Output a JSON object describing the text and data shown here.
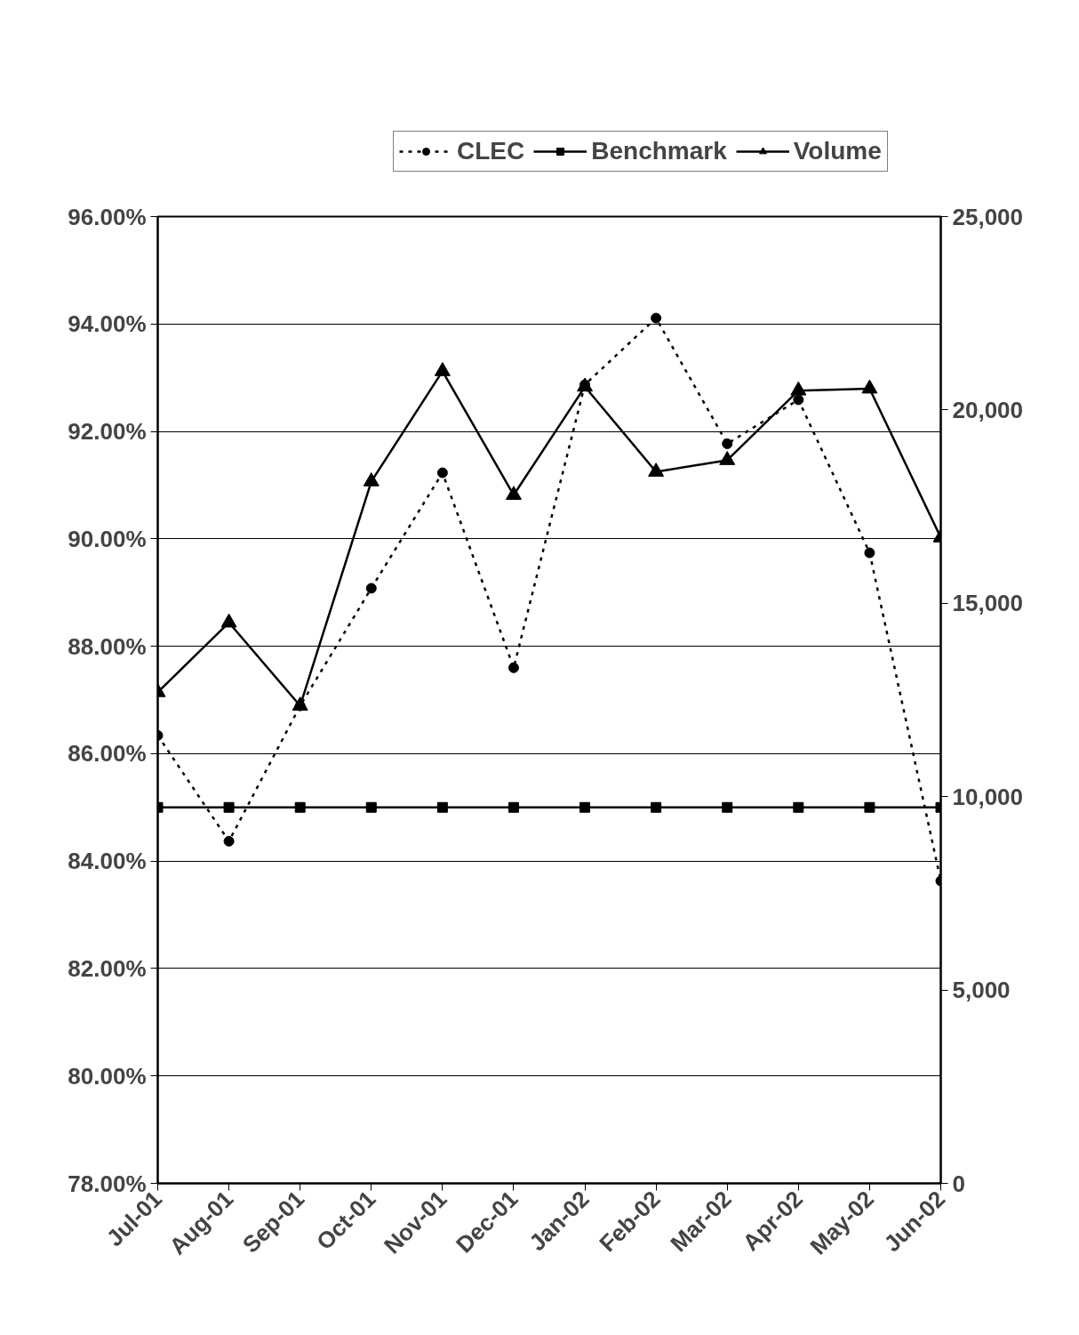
{
  "chart_data": {
    "type": "line",
    "categories": [
      "Jul-01",
      "Aug-01",
      "Sep-01",
      "Oct-01",
      "Nov-01",
      "Dec-01",
      "Jan-02",
      "Feb-02",
      "Mar-02",
      "Apr-02",
      "May-02",
      "Jun-02"
    ],
    "series": [
      {
        "name": "CLEC",
        "color": "#000000",
        "marker": "circle",
        "line_style": "dotted",
        "values": [
          86.34,
          84.37,
          86.89,
          89.08,
          91.23,
          87.6,
          92.87,
          94.11,
          91.77,
          92.59,
          89.74,
          83.63
        ]
      },
      {
        "name": "Benchmark",
        "color": "#000000",
        "marker": "square",
        "line_style": "solid",
        "values": [
          85,
          85,
          85,
          85,
          85,
          85,
          85,
          85,
          85,
          85,
          85,
          85
        ]
      },
      {
        "name": "Volume",
        "color": "#000000",
        "marker": "triangle",
        "line_style": "solid",
        "axis": "y2",
        "values": [
          12700,
          14500,
          12350,
          18150,
          21000,
          17800,
          20600,
          18400,
          18700,
          20500,
          20550,
          16700
        ]
      }
    ],
    "ylim": [
      78,
      96
    ],
    "yticks": [
      {
        "value": 78,
        "label": "78.00%"
      },
      {
        "value": 80,
        "label": "80.00%"
      },
      {
        "value": 82,
        "label": "82.00%"
      },
      {
        "value": 84,
        "label": "84.00%"
      },
      {
        "value": 86,
        "label": "86.00%"
      },
      {
        "value": 88,
        "label": "88.00%"
      },
      {
        "value": 90,
        "label": "90.00%"
      },
      {
        "value": 92,
        "label": "92.00%"
      },
      {
        "value": 94,
        "label": "94.00%"
      },
      {
        "value": 96,
        "label": "96.00%"
      }
    ],
    "y2lim": [
      0,
      25000
    ],
    "y2ticks": [
      0,
      {
        "value": 5000,
        "label": "5,000"
      },
      {
        "value": 10000,
        "label": "10,000"
      },
      {
        "value": 15000,
        "label": "15,000"
      },
      {
        "value": 20000,
        "label": "20,000"
      },
      {
        "value": 25000,
        "label": "25,000"
      }
    ],
    "grid": "y",
    "legend": "top"
  }
}
